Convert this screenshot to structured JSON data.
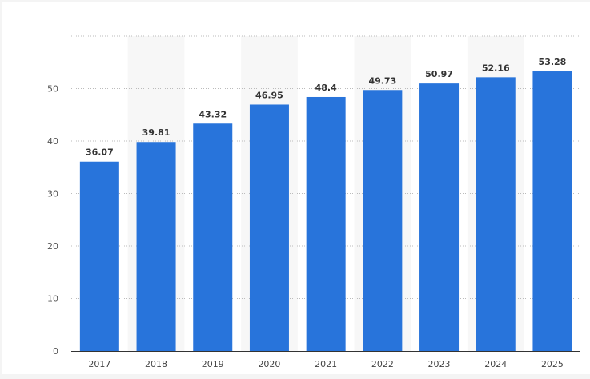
{
  "chart_data": {
    "type": "bar",
    "categories": [
      "2017",
      "2018",
      "2019",
      "2020",
      "2021",
      "2022",
      "2023",
      "2024",
      "2025"
    ],
    "values": [
      36.07,
      39.81,
      43.32,
      46.95,
      48.4,
      49.73,
      50.97,
      52.16,
      53.28
    ],
    "data_labels": [
      "36.07",
      "39.81",
      "43.32",
      "46.95",
      "48.4",
      "49.73",
      "50.97",
      "52.16",
      "53.28"
    ],
    "y_ticks": [
      "0",
      "10",
      "20",
      "30",
      "40",
      "50"
    ],
    "ylim": [
      0,
      60
    ],
    "title": "",
    "xlabel": "",
    "ylabel": "",
    "grid": true,
    "colors": {
      "bar": "#2874db",
      "band": "#f7f7f7",
      "grid": "#bbbbbb",
      "axis": "#333333"
    }
  }
}
